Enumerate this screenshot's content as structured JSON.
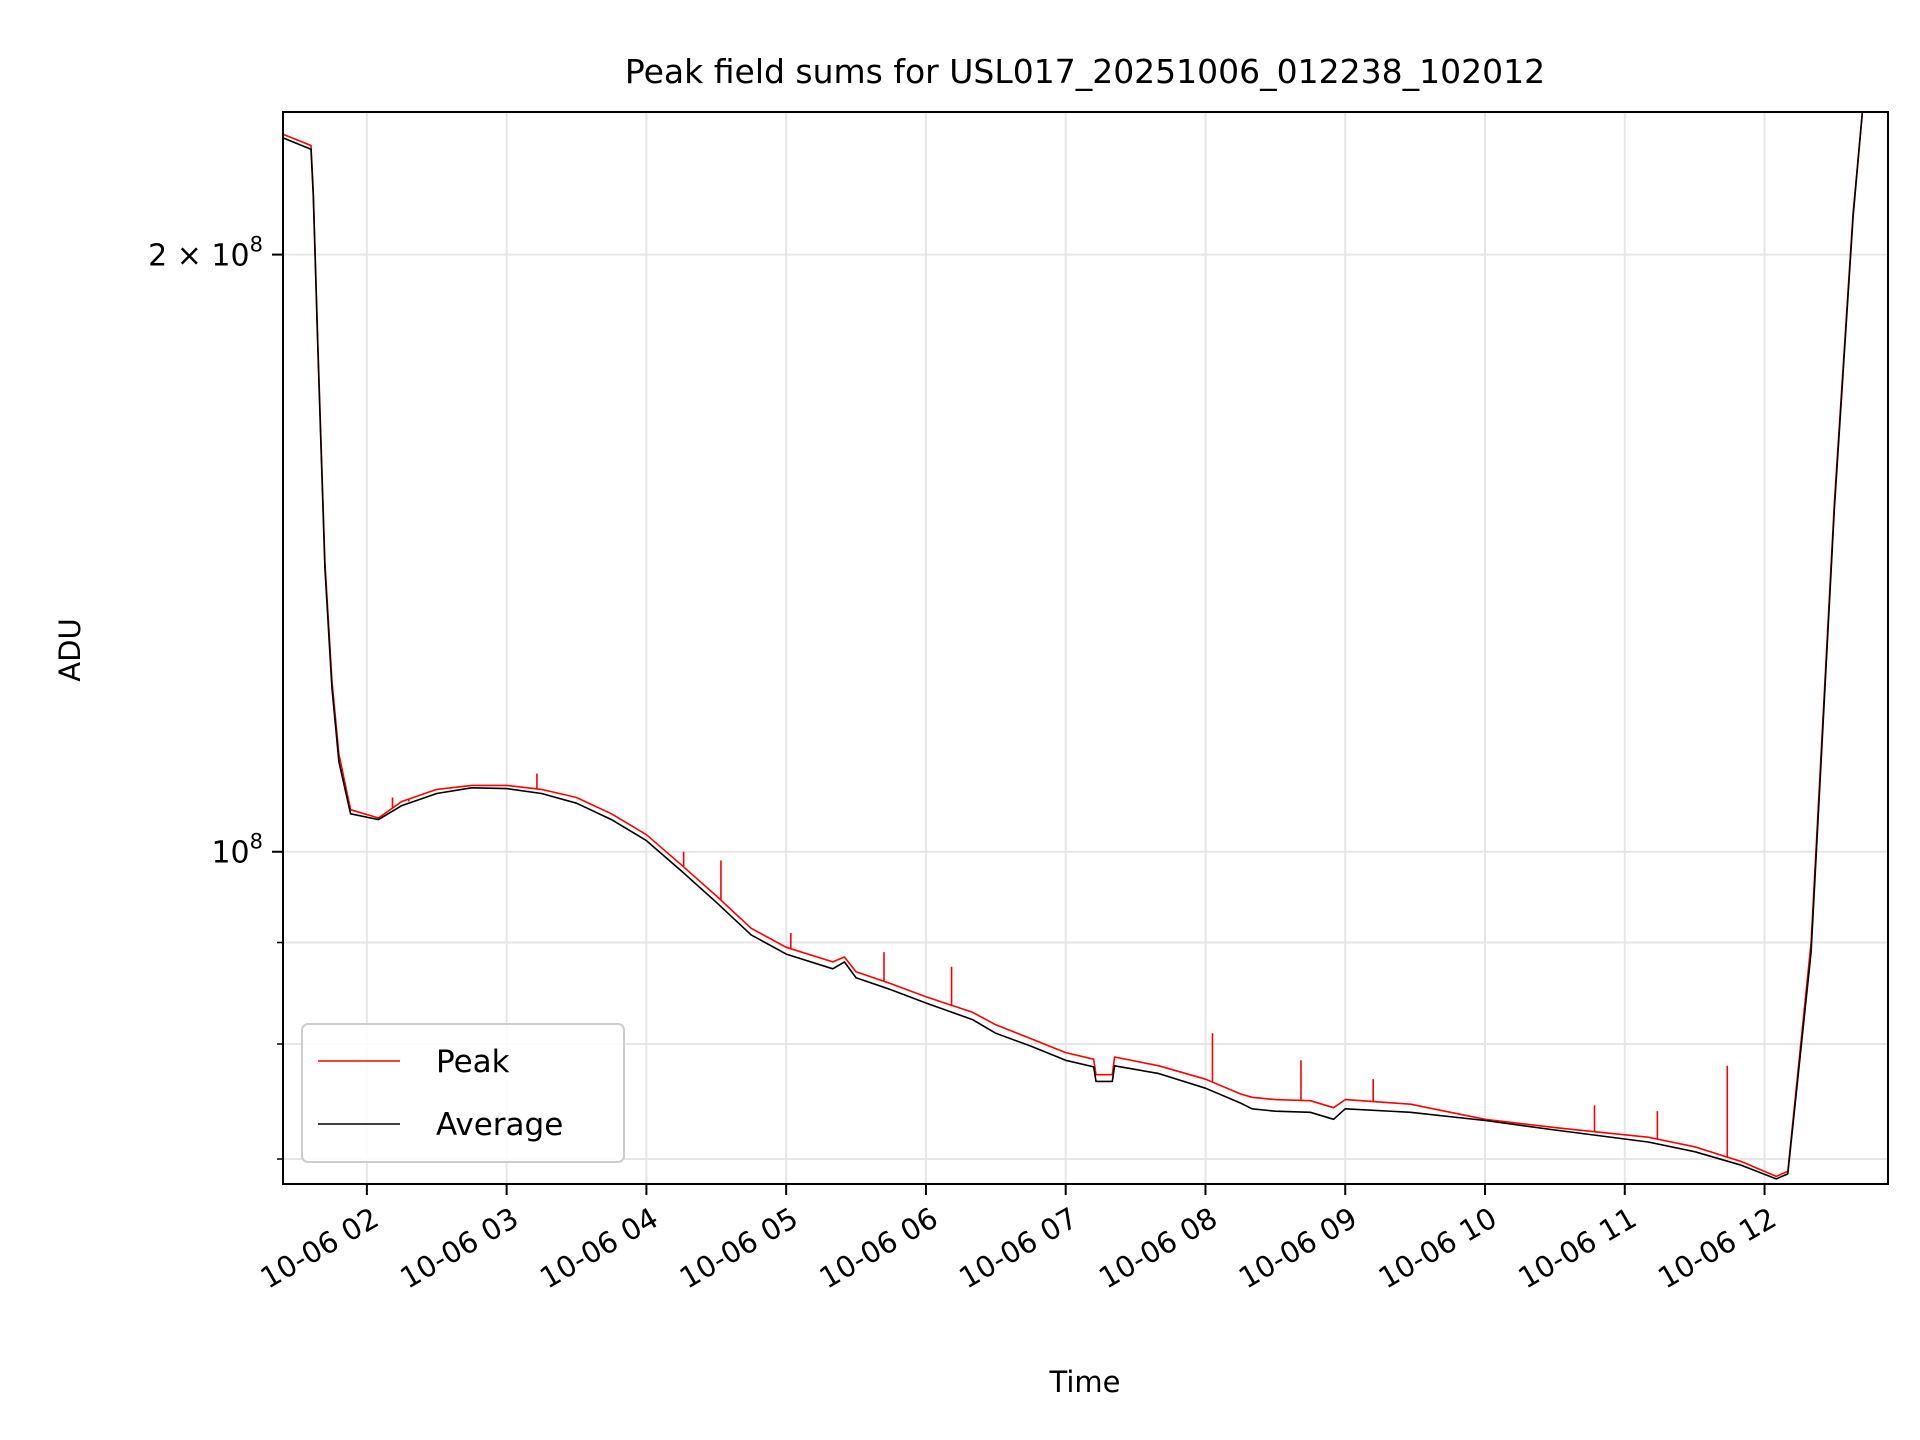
{
  "chart_data": {
    "type": "line",
    "title": "Peak field sums for USL017_20251006_012238_102012",
    "xlabel": "Time",
    "ylabel": "ADU",
    "yscale": "log",
    "grid": true,
    "legend_position": "lower-left",
    "xlim": [
      "10-06 01:24",
      "10-06 12:53"
    ],
    "ylim": [
      68000000,
      236000000
    ],
    "x_ticks": [
      "10-06 02",
      "10-06 03",
      "10-06 04",
      "10-06 05",
      "10-06 06",
      "10-06 07",
      "10-06 08",
      "10-06 09",
      "10-06 10",
      "10-06 11",
      "10-06 12"
    ],
    "y_tick_labels": [
      {
        "value": 200000000,
        "label": "2 × 10",
        "exp": "8"
      },
      {
        "value": 100000000,
        "label": "10",
        "exp": "8"
      }
    ],
    "colors": {
      "peak": "#ff0000",
      "average": "#000000",
      "grid": "#e6e6e6"
    },
    "series": [
      {
        "name": "Peak",
        "color": "#ff0000",
        "points": [
          [
            "10-06 01:24",
            230000000
          ],
          [
            "10-06 01:36",
            227000000
          ],
          [
            "10-06 01:37",
            215000000
          ],
          [
            "10-06 01:39",
            180000000
          ],
          [
            "10-06 01:42",
            140000000
          ],
          [
            "10-06 01:45",
            122000000
          ],
          [
            "10-06 01:48",
            112000000
          ],
          [
            "10-06 01:53",
            105000000
          ],
          [
            "10-06 02:05",
            104000000
          ],
          [
            "10-06 02:15",
            106000000
          ],
          [
            "10-06 02:30",
            107500000
          ],
          [
            "10-06 02:45",
            108000000
          ],
          [
            "10-06 03:00",
            108000000
          ],
          [
            "10-06 03:15",
            107500000
          ],
          [
            "10-06 03:30",
            106500000
          ],
          [
            "10-06 03:45",
            104500000
          ],
          [
            "10-06 04:00",
            102000000
          ],
          [
            "10-06 04:15",
            98500000
          ],
          [
            "10-06 04:30",
            95000000
          ],
          [
            "10-06 04:45",
            91500000
          ],
          [
            "10-06 05:00",
            89500000
          ],
          [
            "10-06 05:20",
            88000000
          ],
          [
            "10-06 05:25",
            88500000
          ],
          [
            "10-06 05:30",
            87000000
          ],
          [
            "10-06 05:45",
            85800000
          ],
          [
            "10-06 06:00",
            84500000
          ],
          [
            "10-06 06:20",
            83000000
          ],
          [
            "10-06 06:30",
            81800000
          ],
          [
            "10-06 06:45",
            80500000
          ],
          [
            "10-06 07:00",
            79200000
          ],
          [
            "10-06 07:12",
            78600000
          ],
          [
            "10-06 07:13",
            77200000
          ],
          [
            "10-06 07:20",
            77200000
          ],
          [
            "10-06 07:21",
            78800000
          ],
          [
            "10-06 07:40",
            78000000
          ],
          [
            "10-06 08:00",
            76800000
          ],
          [
            "10-06 08:15",
            75500000
          ],
          [
            "10-06 08:20",
            75200000
          ],
          [
            "10-06 08:30",
            75000000
          ],
          [
            "10-06 08:45",
            74900000
          ],
          [
            "10-06 08:55",
            74300000
          ],
          [
            "10-06 09:00",
            75000000
          ],
          [
            "10-06 09:28",
            74600000
          ],
          [
            "10-06 10:00",
            73300000
          ],
          [
            "10-06 10:30",
            72600000
          ],
          [
            "10-06 10:50",
            72200000
          ],
          [
            "10-06 11:10",
            71800000
          ],
          [
            "10-06 11:30",
            71000000
          ],
          [
            "10-06 11:50",
            69800000
          ],
          [
            "10-06 12:05",
            68600000
          ],
          [
            "10-06 12:10",
            69000000
          ],
          [
            "10-06 12:20",
            90000000
          ],
          [
            "10-06 12:30",
            150000000
          ],
          [
            "10-06 12:38",
            210000000
          ],
          [
            "10-06 12:42",
            236000000
          ]
        ],
        "spikes": [
          [
            "10-06 02:11",
            106500000
          ],
          [
            "10-06 02:18",
            106000000
          ],
          [
            "10-06 03:13",
            109500000
          ],
          [
            "10-06 04:16",
            100000000
          ],
          [
            "10-06 04:32",
            99000000
          ],
          [
            "10-06 05:02",
            91000000
          ],
          [
            "10-06 05:42",
            89000000
          ],
          [
            "10-06 06:11",
            87500000
          ],
          [
            "10-06 08:03",
            81000000
          ],
          [
            "10-06 08:41",
            78500000
          ],
          [
            "10-06 09:12",
            76800000
          ],
          [
            "10-06 10:47",
            74500000
          ],
          [
            "10-06 11:14",
            74000000
          ],
          [
            "10-06 11:44",
            78000000
          ]
        ]
      },
      {
        "name": "Average",
        "color": "#000000",
        "points": [
          [
            "10-06 01:24",
            229000000
          ],
          [
            "10-06 01:36",
            226000000
          ],
          [
            "10-06 01:37",
            214000000
          ],
          [
            "10-06 01:39",
            179000000
          ],
          [
            "10-06 01:42",
            139000000
          ],
          [
            "10-06 01:45",
            121000000
          ],
          [
            "10-06 01:48",
            111000000
          ],
          [
            "10-06 01:53",
            104500000
          ],
          [
            "10-06 02:05",
            103800000
          ],
          [
            "10-06 02:15",
            105500000
          ],
          [
            "10-06 02:30",
            107000000
          ],
          [
            "10-06 02:45",
            107700000
          ],
          [
            "10-06 03:00",
            107600000
          ],
          [
            "10-06 03:15",
            107000000
          ],
          [
            "10-06 03:30",
            105800000
          ],
          [
            "10-06 03:45",
            103800000
          ],
          [
            "10-06 04:00",
            101300000
          ],
          [
            "10-06 04:15",
            97800000
          ],
          [
            "10-06 04:30",
            94300000
          ],
          [
            "10-06 04:45",
            90800000
          ],
          [
            "10-06 05:00",
            88800000
          ],
          [
            "10-06 05:20",
            87300000
          ],
          [
            "10-06 05:25",
            88000000
          ],
          [
            "10-06 05:30",
            86400000
          ],
          [
            "10-06 05:45",
            85200000
          ],
          [
            "10-06 06:00",
            83900000
          ],
          [
            "10-06 06:20",
            82300000
          ],
          [
            "10-06 06:30",
            81000000
          ],
          [
            "10-06 06:45",
            79800000
          ],
          [
            "10-06 07:00",
            78500000
          ],
          [
            "10-06 07:12",
            77900000
          ],
          [
            "10-06 07:13",
            76600000
          ],
          [
            "10-06 07:20",
            76600000
          ],
          [
            "10-06 07:21",
            78000000
          ],
          [
            "10-06 07:40",
            77300000
          ],
          [
            "10-06 08:00",
            76000000
          ],
          [
            "10-06 08:15",
            74700000
          ],
          [
            "10-06 08:20",
            74200000
          ],
          [
            "10-06 08:30",
            74000000
          ],
          [
            "10-06 08:45",
            73900000
          ],
          [
            "10-06 08:55",
            73300000
          ],
          [
            "10-06 09:00",
            74200000
          ],
          [
            "10-06 09:28",
            73900000
          ],
          [
            "10-06 10:00",
            73200000
          ],
          [
            "10-06 10:30",
            72400000
          ],
          [
            "10-06 10:50",
            71900000
          ],
          [
            "10-06 11:10",
            71400000
          ],
          [
            "10-06 11:30",
            70600000
          ],
          [
            "10-06 11:50",
            69500000
          ],
          [
            "10-06 12:05",
            68400000
          ],
          [
            "10-06 12:10",
            68800000
          ],
          [
            "10-06 12:20",
            89000000
          ],
          [
            "10-06 12:30",
            149000000
          ],
          [
            "10-06 12:38",
            209000000
          ],
          [
            "10-06 12:42",
            236000000
          ]
        ]
      }
    ]
  }
}
